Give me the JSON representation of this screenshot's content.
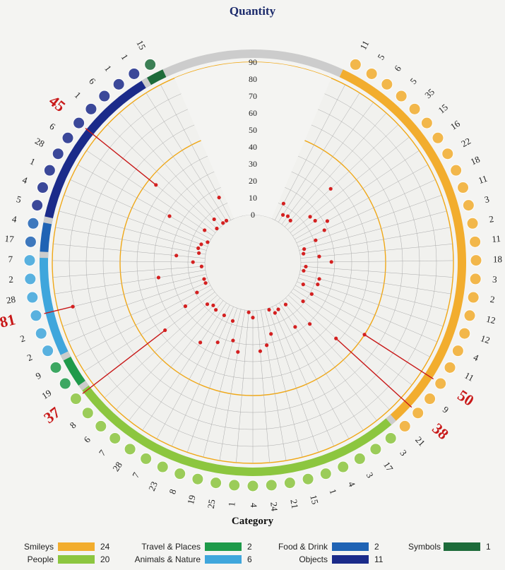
{
  "title": "Quantity",
  "legend_title": "Category",
  "colors": {
    "background": "#f4f4f2",
    "grid": "#aaaaaa",
    "ring_highlight": "#f0a818",
    "dot": "#d42020",
    "callout": "#c81818",
    "gap": "#cccccc"
  },
  "categories": [
    {
      "name": "Smileys",
      "count": "24",
      "color": "#f2ad2e"
    },
    {
      "name": "People",
      "count": "20",
      "color": "#8cc63f"
    },
    {
      "name": "Travel & Places",
      "count": "2",
      "color": "#1e9a4a"
    },
    {
      "name": "Animals & Nature",
      "count": "6",
      "color": "#3fa6dc"
    },
    {
      "name": "Food & Drink",
      "count": "2",
      "color": "#1f63b4"
    },
    {
      "name": "Objects",
      "count": "11",
      "color": "#1b2b8a"
    },
    {
      "name": "Symbols",
      "count": "1",
      "color": "#1d6b3a"
    }
  ],
  "chart_data": {
    "type": "scatter",
    "title": "Quantity",
    "axis_label": "Quantity",
    "radial_ticks": [
      0,
      10,
      20,
      30,
      40,
      50,
      60,
      70,
      80,
      90
    ],
    "radial_range": [
      0,
      90
    ],
    "highlight_rings": [
      50,
      90
    ],
    "callouts": [
      "45",
      "81",
      "37",
      "50",
      "38"
    ],
    "points": [
      {
        "icon": "pouting-face",
        "category": "Smileys",
        "value": 11
      },
      {
        "icon": "cold-face",
        "category": "Smileys",
        "value": 5
      },
      {
        "icon": "nauseated-face",
        "category": "Smileys",
        "value": 6
      },
      {
        "icon": "vomiting-face",
        "category": "Smileys",
        "value": 5
      },
      {
        "icon": "face-with-medical-mask",
        "category": "Smileys",
        "value": 35
      },
      {
        "icon": "face-with-thermometer",
        "category": "Smileys",
        "value": 15
      },
      {
        "icon": "sneezing-face",
        "category": "Smileys",
        "value": 16
      },
      {
        "icon": "face-with-head-bandage",
        "category": "Smileys",
        "value": 22
      },
      {
        "icon": "dizzy-face",
        "category": "Smileys",
        "value": 18
      },
      {
        "icon": "exploding-head",
        "category": "Smileys",
        "value": 11
      },
      {
        "icon": "woozy-face",
        "category": "Smileys",
        "value": 3
      },
      {
        "icon": "face-with-spiral-eyes",
        "category": "Smileys",
        "value": 2
      },
      {
        "icon": "sleepy-face",
        "category": "Smileys",
        "value": 11
      },
      {
        "icon": "worried-face",
        "category": "Smileys",
        "value": 18
      },
      {
        "icon": "tired-face",
        "category": "Smileys",
        "value": 3
      },
      {
        "icon": "sleeping-face",
        "category": "Smileys",
        "value": 2
      },
      {
        "icon": "yawning-face",
        "category": "Smileys",
        "value": 12
      },
      {
        "icon": "confounded-face",
        "category": "Smileys",
        "value": 12
      },
      {
        "icon": "persevering-face",
        "category": "Smileys",
        "value": 4
      },
      {
        "icon": "face-with-open-mouth",
        "category": "Smileys",
        "value": 11
      },
      {
        "icon": "smiling-face-with-halo",
        "category": "Smileys",
        "value": 50
      },
      {
        "icon": "face-screaming-in-fear",
        "category": "Smileys",
        "value": 9
      },
      {
        "icon": "skull-and-crossbones",
        "category": "Smileys",
        "value": 38
      },
      {
        "icon": "skull",
        "category": "Smileys",
        "value": 21
      },
      {
        "icon": "palms-up-together",
        "category": "People",
        "value": 3
      },
      {
        "icon": "foot",
        "category": "People",
        "value": 17
      },
      {
        "icon": "eye",
        "category": "People",
        "value": 3
      },
      {
        "icon": "ear",
        "category": "People",
        "value": 4
      },
      {
        "icon": "ear-with-hearing-aid",
        "category": "People",
        "value": 1
      },
      {
        "icon": "nose",
        "category": "People",
        "value": 15
      },
      {
        "icon": "brain",
        "category": "People",
        "value": 21
      },
      {
        "icon": "anatomical-heart",
        "category": "People",
        "value": 24
      },
      {
        "icon": "lungs",
        "category": "People",
        "value": 4
      },
      {
        "icon": "tooth",
        "category": "People",
        "value": 1
      },
      {
        "icon": "mouth",
        "category": "People",
        "value": 25
      },
      {
        "icon": "dna",
        "category": "People",
        "value": 19
      },
      {
        "icon": "drop-of-blood",
        "category": "People",
        "value": 8
      },
      {
        "icon": "person-in-bed",
        "category": "People",
        "value": 23
      },
      {
        "icon": "pregnant-woman",
        "category": "People",
        "value": 7
      },
      {
        "icon": "health-worker",
        "category": "People",
        "value": 28
      },
      {
        "icon": "man-health-worker",
        "category": "People",
        "value": 7
      },
      {
        "icon": "woman-health-worker",
        "category": "People",
        "value": 6
      },
      {
        "icon": "woman-health-worker-2",
        "category": "People",
        "value": 8
      },
      {
        "icon": "man-health-worker-2",
        "category": "People",
        "value": 37
      },
      {
        "icon": "hospital",
        "category": "Travel & Places",
        "value": 19
      },
      {
        "icon": "ambulance",
        "category": "Travel & Places",
        "value": 9
      },
      {
        "icon": "mosquito",
        "category": "Animals & Nature",
        "value": 2
      },
      {
        "icon": "honeybee",
        "category": "Animals & Nature",
        "value": 2
      },
      {
        "icon": "snake",
        "category": "Animals & Nature",
        "value": 81
      },
      {
        "icon": "microbe",
        "category": "Animals & Nature",
        "value": 28
      },
      {
        "icon": "sun",
        "category": "Animals & Nature",
        "value": 2
      },
      {
        "icon": "sun-behind-cloud",
        "category": "Animals & Nature",
        "value": 7
      },
      {
        "icon": "tumbler-glass",
        "category": "Food & Drink",
        "value": 17
      },
      {
        "icon": "fork-and-knife",
        "category": "Food & Drink",
        "value": 4
      },
      {
        "icon": "cigarette",
        "category": "Objects",
        "value": 5
      },
      {
        "icon": "test-tube",
        "category": "Objects",
        "value": 4
      },
      {
        "icon": "thermometer",
        "category": "Objects",
        "value": 1
      },
      {
        "icon": "adhesive-bandage",
        "category": "Objects",
        "value": 28
      },
      {
        "icon": "pill",
        "category": "Objects",
        "value": 6
      },
      {
        "icon": "stethoscope",
        "category": "Objects",
        "value": 45
      },
      {
        "icon": "syringe",
        "category": "Objects",
        "value": 1
      },
      {
        "icon": "x-ray",
        "category": "Objects",
        "value": 6
      },
      {
        "icon": "microscope",
        "category": "Objects",
        "value": 1
      },
      {
        "icon": "goggles",
        "category": "Objects",
        "value": 1
      },
      {
        "icon": "no-smoking",
        "category": "Symbols",
        "value": 15
      }
    ]
  }
}
